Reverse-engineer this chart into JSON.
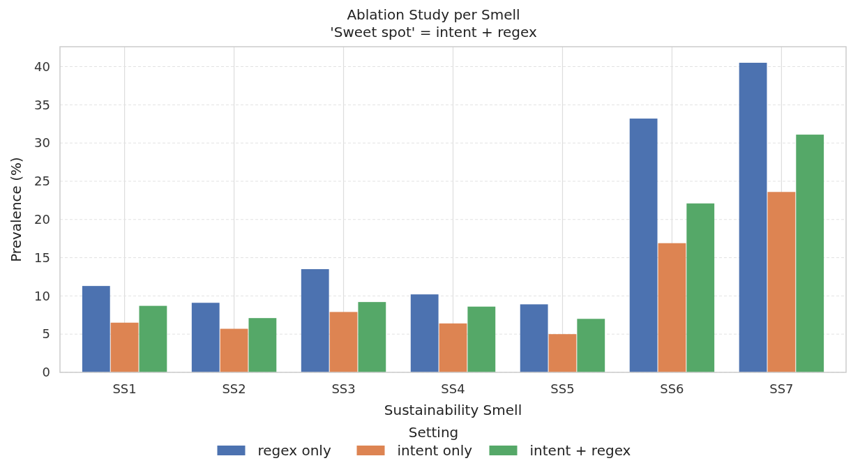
{
  "chart_data": {
    "type": "bar",
    "title": "Ablation Study per Smell",
    "subtitle": "'Sweet spot' = intent + regex",
    "xlabel": "Sustainability Smell",
    "ylabel": "Prevalence (%)",
    "legend_title": "Setting",
    "legend": "bottom",
    "grid": true,
    "categories": [
      "SS1",
      "SS2",
      "SS3",
      "SS4",
      "SS5",
      "SS6",
      "SS7"
    ],
    "series": [
      {
        "name": "regex only",
        "color": "#4c72b0",
        "values": [
          11.3,
          9.1,
          13.5,
          10.2,
          8.9,
          33.2,
          40.5
        ]
      },
      {
        "name": "intent only",
        "color": "#dd8452",
        "values": [
          6.5,
          5.7,
          7.9,
          6.4,
          5.0,
          16.9,
          23.6
        ]
      },
      {
        "name": "intent + regex",
        "color": "#55a868",
        "values": [
          8.7,
          7.1,
          9.2,
          8.6,
          7.0,
          22.1,
          31.1
        ]
      }
    ],
    "ylim": [
      0,
      42.6
    ],
    "yticks": [
      0,
      5,
      10,
      15,
      20,
      25,
      30,
      35,
      40
    ]
  }
}
